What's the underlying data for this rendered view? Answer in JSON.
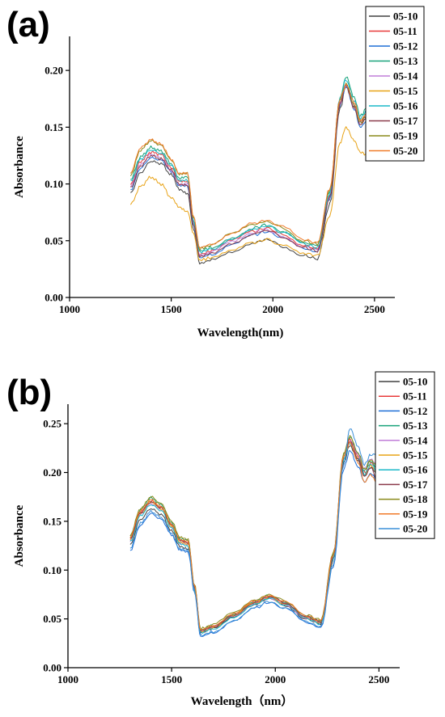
{
  "chart_data": [
    {
      "panel_label": "(a)",
      "type": "line",
      "xlabel": "Wavelength(nm)",
      "ylabel": "Absorbance",
      "xlim": [
        1000,
        2600
      ],
      "ylim": [
        0,
        0.23
      ],
      "xticks": [
        1000,
        1500,
        2000,
        2500
      ],
      "yticks": [
        0.0,
        0.05,
        0.1,
        0.15,
        0.2
      ],
      "legend": "top-right",
      "grid": false,
      "x": [
        1300,
        1350,
        1400,
        1450,
        1500,
        1540,
        1580,
        1610,
        1640,
        1700,
        1800,
        1900,
        1970,
        2050,
        2150,
        2220,
        2280,
        2330,
        2360,
        2400,
        2430,
        2460,
        2500
      ],
      "series": [
        {
          "name": "05-10",
          "color": "#404040",
          "values": [
            0.092,
            0.11,
            0.12,
            0.118,
            0.108,
            0.095,
            0.092,
            0.06,
            0.03,
            0.033,
            0.04,
            0.048,
            0.051,
            0.045,
            0.037,
            0.034,
            0.082,
            0.166,
            0.186,
            0.168,
            0.152,
            0.158,
            0.15
          ]
        },
        {
          "name": "05-11",
          "color": "#e83a3a",
          "values": [
            0.1,
            0.12,
            0.128,
            0.126,
            0.114,
            0.102,
            0.102,
            0.066,
            0.038,
            0.041,
            0.05,
            0.058,
            0.061,
            0.055,
            0.046,
            0.043,
            0.09,
            0.172,
            0.186,
            0.17,
            0.155,
            0.16,
            0.152
          ]
        },
        {
          "name": "05-12",
          "color": "#1f6fd6",
          "values": [
            0.095,
            0.114,
            0.123,
            0.121,
            0.111,
            0.098,
            0.098,
            0.063,
            0.035,
            0.038,
            0.047,
            0.055,
            0.058,
            0.052,
            0.043,
            0.04,
            0.087,
            0.17,
            0.186,
            0.166,
            0.15,
            0.155,
            0.146
          ]
        },
        {
          "name": "05-13",
          "color": "#19a37a",
          "values": [
            0.104,
            0.124,
            0.132,
            0.129,
            0.118,
            0.105,
            0.106,
            0.068,
            0.041,
            0.044,
            0.053,
            0.061,
            0.064,
            0.058,
            0.048,
            0.046,
            0.093,
            0.176,
            0.194,
            0.176,
            0.16,
            0.166,
            0.16
          ]
        },
        {
          "name": "05-14",
          "color": "#c07ed8",
          "values": [
            0.098,
            0.117,
            0.126,
            0.123,
            0.112,
            0.1,
            0.1,
            0.065,
            0.037,
            0.04,
            0.049,
            0.057,
            0.06,
            0.054,
            0.045,
            0.042,
            0.089,
            0.171,
            0.187,
            0.169,
            0.154,
            0.16,
            0.153
          ]
        },
        {
          "name": "05-15",
          "color": "#e8a317",
          "values": [
            0.082,
            0.098,
            0.106,
            0.1,
            0.088,
            0.08,
            0.076,
            0.056,
            0.033,
            0.035,
            0.041,
            0.048,
            0.051,
            0.046,
            0.039,
            0.037,
            0.072,
            0.136,
            0.15,
            0.138,
            0.128,
            0.126,
            0.122
          ]
        },
        {
          "name": "05-16",
          "color": "#1ab8c8",
          "values": [
            0.102,
            0.122,
            0.13,
            0.127,
            0.116,
            0.103,
            0.104,
            0.067,
            0.04,
            0.043,
            0.052,
            0.06,
            0.063,
            0.057,
            0.047,
            0.044,
            0.091,
            0.175,
            0.192,
            0.173,
            0.158,
            0.164,
            0.156
          ]
        },
        {
          "name": "05-17",
          "color": "#8b3a4a",
          "values": [
            0.097,
            0.116,
            0.125,
            0.122,
            0.112,
            0.099,
            0.099,
            0.064,
            0.036,
            0.039,
            0.048,
            0.056,
            0.059,
            0.053,
            0.044,
            0.041,
            0.088,
            0.17,
            0.188,
            0.167,
            0.152,
            0.158,
            0.15
          ]
        },
        {
          "name": "05-19",
          "color": "#8a8a1a",
          "values": [
            0.108,
            0.13,
            0.138,
            0.134,
            0.121,
            0.108,
            0.109,
            0.07,
            0.043,
            0.046,
            0.056,
            0.064,
            0.067,
            0.061,
            0.05,
            0.047,
            0.095,
            0.174,
            0.188,
            0.17,
            0.154,
            0.16,
            0.154
          ]
        },
        {
          "name": "05-20",
          "color": "#f07a28",
          "values": [
            0.11,
            0.132,
            0.139,
            0.135,
            0.122,
            0.109,
            0.109,
            0.071,
            0.044,
            0.047,
            0.056,
            0.065,
            0.068,
            0.062,
            0.051,
            0.048,
            0.096,
            0.175,
            0.187,
            0.172,
            0.156,
            0.162,
            0.155
          ]
        }
      ]
    },
    {
      "panel_label": "(b)",
      "type": "line",
      "xlabel": "Wavelength（nm）",
      "ylabel": "Absorbance",
      "xlim": [
        1000,
        2600
      ],
      "ylim": [
        0,
        0.27
      ],
      "xticks": [
        1000,
        1500,
        2000,
        2500
      ],
      "yticks": [
        0.0,
        0.05,
        0.1,
        0.15,
        0.2,
        0.25
      ],
      "legend": "top-right",
      "grid": false,
      "x": [
        1300,
        1350,
        1400,
        1450,
        1500,
        1540,
        1580,
        1610,
        1640,
        1700,
        1800,
        1900,
        1970,
        2050,
        2150,
        2220,
        2280,
        2330,
        2360,
        2400,
        2430,
        2460,
        2500
      ],
      "series": [
        {
          "name": "05-10",
          "color": "#404040",
          "values": [
            0.126,
            0.152,
            0.163,
            0.157,
            0.14,
            0.124,
            0.122,
            0.08,
            0.036,
            0.04,
            0.052,
            0.065,
            0.071,
            0.064,
            0.05,
            0.045,
            0.11,
            0.21,
            0.228,
            0.212,
            0.196,
            0.205,
            0.195
          ]
        },
        {
          "name": "05-11",
          "color": "#e83a3a",
          "values": [
            0.133,
            0.16,
            0.171,
            0.164,
            0.146,
            0.13,
            0.128,
            0.083,
            0.038,
            0.042,
            0.054,
            0.067,
            0.073,
            0.066,
            0.052,
            0.047,
            0.115,
            0.217,
            0.234,
            0.217,
            0.2,
            0.21,
            0.2
          ]
        },
        {
          "name": "05-12",
          "color": "#1f6fd6",
          "values": [
            0.12,
            0.146,
            0.158,
            0.152,
            0.136,
            0.12,
            0.118,
            0.077,
            0.032,
            0.036,
            0.048,
            0.061,
            0.067,
            0.06,
            0.046,
            0.041,
            0.104,
            0.204,
            0.222,
            0.206,
            0.19,
            0.199,
            0.19
          ]
        },
        {
          "name": "05-13",
          "color": "#19a37a",
          "values": [
            0.135,
            0.162,
            0.174,
            0.167,
            0.149,
            0.132,
            0.13,
            0.084,
            0.039,
            0.043,
            0.055,
            0.068,
            0.074,
            0.067,
            0.053,
            0.048,
            0.117,
            0.219,
            0.236,
            0.219,
            0.202,
            0.212,
            0.202
          ]
        },
        {
          "name": "05-14",
          "color": "#c07ed8",
          "values": [
            0.13,
            0.157,
            0.168,
            0.162,
            0.144,
            0.128,
            0.126,
            0.082,
            0.037,
            0.041,
            0.053,
            0.066,
            0.072,
            0.065,
            0.051,
            0.046,
            0.113,
            0.214,
            0.232,
            0.218,
            0.204,
            0.214,
            0.206
          ]
        },
        {
          "name": "05-15",
          "color": "#e8a317",
          "values": [
            0.131,
            0.158,
            0.17,
            0.163,
            0.145,
            0.129,
            0.127,
            0.082,
            0.037,
            0.041,
            0.053,
            0.066,
            0.072,
            0.065,
            0.051,
            0.046,
            0.113,
            0.215,
            0.231,
            0.214,
            0.197,
            0.207,
            0.197
          ]
        },
        {
          "name": "05-16",
          "color": "#1ab8c8",
          "values": [
            0.129,
            0.156,
            0.167,
            0.161,
            0.143,
            0.127,
            0.125,
            0.081,
            0.036,
            0.04,
            0.052,
            0.065,
            0.071,
            0.064,
            0.05,
            0.045,
            0.112,
            0.213,
            0.23,
            0.214,
            0.198,
            0.208,
            0.198
          ]
        },
        {
          "name": "05-17",
          "color": "#8b3a4a",
          "values": [
            0.132,
            0.159,
            0.17,
            0.164,
            0.146,
            0.13,
            0.128,
            0.083,
            0.038,
            0.042,
            0.054,
            0.067,
            0.073,
            0.066,
            0.052,
            0.047,
            0.114,
            0.216,
            0.232,
            0.214,
            0.196,
            0.205,
            0.186
          ]
        },
        {
          "name": "05-18",
          "color": "#8a8a1a",
          "values": [
            0.136,
            0.163,
            0.175,
            0.168,
            0.15,
            0.133,
            0.131,
            0.085,
            0.04,
            0.044,
            0.056,
            0.069,
            0.075,
            0.068,
            0.054,
            0.049,
            0.118,
            0.22,
            0.237,
            0.22,
            0.203,
            0.213,
            0.203
          ]
        },
        {
          "name": "05-19",
          "color": "#f07a28",
          "values": [
            0.134,
            0.161,
            0.172,
            0.165,
            0.147,
            0.131,
            0.129,
            0.084,
            0.039,
            0.043,
            0.055,
            0.068,
            0.074,
            0.067,
            0.053,
            0.048,
            0.116,
            0.218,
            0.23,
            0.21,
            0.19,
            0.198,
            0.186
          ]
        },
        {
          "name": "05-20",
          "color": "#3a8fd8",
          "values": [
            0.122,
            0.148,
            0.16,
            0.154,
            0.138,
            0.122,
            0.12,
            0.078,
            0.033,
            0.037,
            0.049,
            0.062,
            0.068,
            0.061,
            0.047,
            0.042,
            0.106,
            0.208,
            0.245,
            0.226,
            0.208,
            0.218,
            0.222
          ]
        }
      ]
    }
  ]
}
